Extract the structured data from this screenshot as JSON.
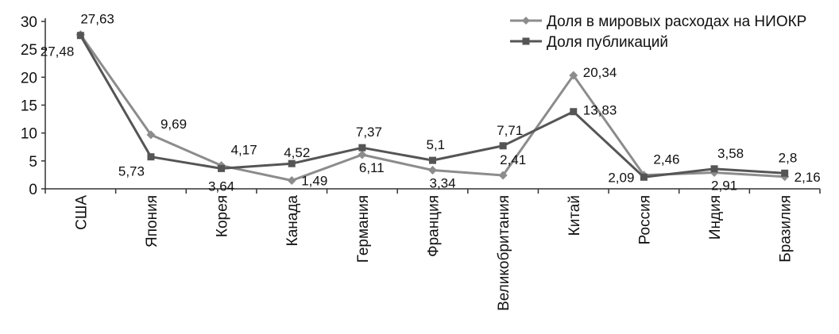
{
  "chart_data": {
    "type": "line",
    "title": "",
    "xlabel": "",
    "ylabel": "",
    "ylim": [
      0,
      30
    ],
    "yticks": [
      0,
      5,
      10,
      15,
      20,
      25,
      30
    ],
    "grid": false,
    "legend_position": "top-right",
    "categories": [
      "США",
      "Япония",
      "Корея",
      "Канада",
      "Германия",
      "Франция",
      "Великобритания",
      "Китай",
      "Россия",
      "Индия",
      "Бразилия"
    ],
    "series": [
      {
        "name": "Доля в мировых расходах на НИОКР",
        "marker": "diamond",
        "color": "#8c8c8c",
        "values": [
          27.63,
          9.69,
          4.17,
          1.49,
          6.11,
          3.34,
          2.41,
          20.34,
          2.46,
          2.91,
          2.16
        ],
        "labels": [
          "27,63",
          "9,69",
          "4,17",
          "1,49",
          "6,11",
          "3,34",
          "2,41",
          "20,34",
          "2,46",
          "2,91",
          "2,16"
        ]
      },
      {
        "name": "Доля публикаций",
        "marker": "square",
        "color": "#555555",
        "values": [
          27.48,
          5.73,
          3.64,
          4.52,
          7.37,
          5.1,
          7.71,
          13.83,
          2.09,
          3.58,
          2.8
        ],
        "labels": [
          "27,48",
          "5,73",
          "3,64",
          "4,52",
          "7,37",
          "5,1",
          "7,71",
          "13,83",
          "2,09",
          "3,58",
          "2,8"
        ]
      }
    ]
  }
}
